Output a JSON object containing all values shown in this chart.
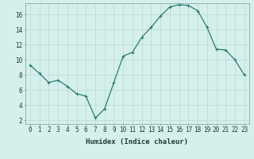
{
  "x": [
    0,
    1,
    2,
    3,
    4,
    5,
    6,
    7,
    8,
    9,
    10,
    11,
    12,
    13,
    14,
    15,
    16,
    17,
    18,
    19,
    20,
    21,
    22,
    23
  ],
  "y": [
    9.3,
    8.2,
    7.0,
    7.3,
    6.5,
    5.5,
    5.2,
    2.3,
    3.5,
    7.0,
    10.5,
    11.0,
    13.0,
    14.3,
    15.8,
    17.0,
    17.3,
    17.2,
    16.5,
    14.3,
    11.4,
    11.3,
    10.0,
    8.0
  ],
  "line_color": "#2d7a6e",
  "marker": "+",
  "marker_size": 3,
  "marker_lw": 0.8,
  "bg_color": "#d5f0ec",
  "grid_color": "#b8d8d4",
  "xlabel": "Humidex (Indice chaleur)",
  "ylabel": "",
  "title": "",
  "xlim": [
    -0.5,
    23.5
  ],
  "ylim": [
    1.5,
    17.5
  ],
  "yticks": [
    2,
    4,
    6,
    8,
    10,
    12,
    14,
    16
  ],
  "xticks": [
    0,
    1,
    2,
    3,
    4,
    5,
    6,
    7,
    8,
    9,
    10,
    11,
    12,
    13,
    14,
    15,
    16,
    17,
    18,
    19,
    20,
    21,
    22,
    23
  ],
  "tick_fontsize": 5.5,
  "label_fontsize": 6.5,
  "line_width": 0.9
}
